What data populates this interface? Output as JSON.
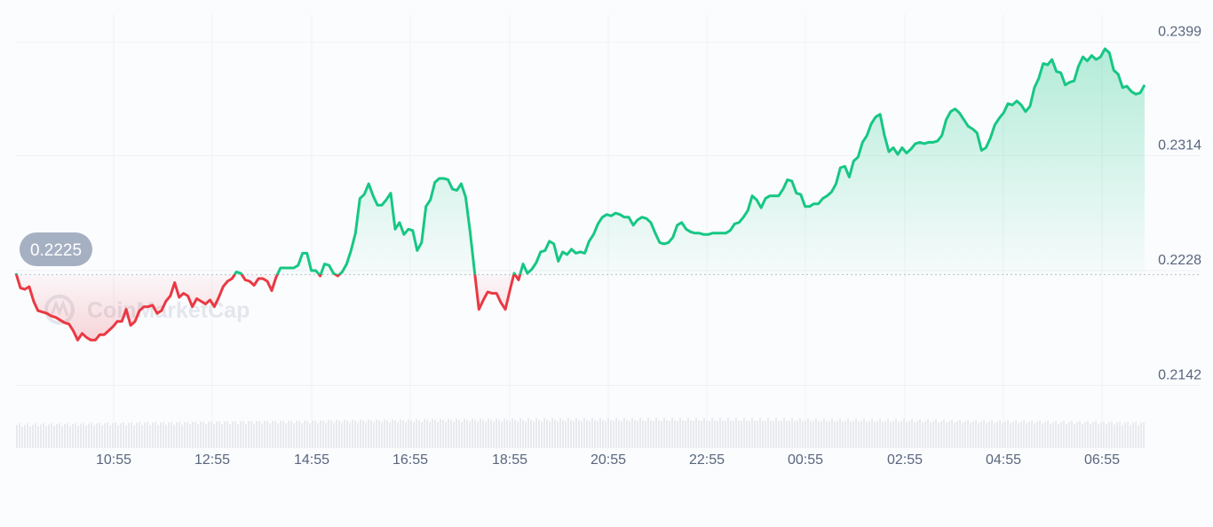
{
  "chart_data": {
    "type": "line",
    "x_labels": [
      "10:55",
      "12:55",
      "14:55",
      "16:55",
      "18:55",
      "20:55",
      "22:55",
      "00:55",
      "02:55",
      "04:55",
      "06:55"
    ],
    "y_ticks": [
      0.2399,
      0.2314,
      0.2228,
      0.2142
    ],
    "ylim": [
      0.2124,
      0.241
    ],
    "baseline": 0.2225,
    "grid": true,
    "series": [
      {
        "values": [
          0.2226,
          0.2215,
          0.2214,
          0.2216,
          0.2205,
          0.2198,
          0.2197,
          0.2196,
          0.2194,
          0.2193,
          0.2191,
          0.2189,
          0.2188,
          0.2183,
          0.2176,
          0.2181,
          0.2178,
          0.2176,
          0.2176,
          0.218,
          0.218,
          0.2183,
          0.2186,
          0.219,
          0.219,
          0.2199,
          0.2187,
          0.219,
          0.2198,
          0.2201,
          0.2201,
          0.2202,
          0.2196,
          0.2198,
          0.2205,
          0.2209,
          0.2219,
          0.2208,
          0.2211,
          0.2209,
          0.2201,
          0.2207,
          0.2205,
          0.2203,
          0.2206,
          0.2201,
          0.2208,
          0.2216,
          0.222,
          0.2222,
          0.2227,
          0.2226,
          0.2221,
          0.222,
          0.2217,
          0.2222,
          0.2222,
          0.222,
          0.2213,
          0.2223,
          0.223,
          0.223,
          0.223,
          0.223,
          0.2232,
          0.2241,
          0.2241,
          0.2228,
          0.2228,
          0.2224,
          0.2233,
          0.2232,
          0.2226,
          0.2224,
          0.2227,
          0.2233,
          0.2243,
          0.2256,
          0.2282,
          0.2285,
          0.2293,
          0.2284,
          0.2277,
          0.2277,
          0.2281,
          0.2286,
          0.2259,
          0.2264,
          0.2255,
          0.2259,
          0.2258,
          0.2243,
          0.2249,
          0.2276,
          0.2281,
          0.2294,
          0.2297,
          0.2297,
          0.2296,
          0.2289,
          0.2288,
          0.2293,
          0.2283,
          0.2257,
          0.2228,
          0.2199,
          0.2206,
          0.2212,
          0.2211,
          0.2211,
          0.2204,
          0.2199,
          0.2213,
          0.2226,
          0.2221,
          0.2233,
          0.2226,
          0.2229,
          0.2234,
          0.2242,
          0.2243,
          0.225,
          0.2248,
          0.2235,
          0.2242,
          0.224,
          0.2244,
          0.2241,
          0.2242,
          0.2241,
          0.225,
          0.2255,
          0.2263,
          0.2268,
          0.227,
          0.2269,
          0.2271,
          0.227,
          0.2268,
          0.2268,
          0.2262,
          0.2266,
          0.2268,
          0.2267,
          0.2264,
          0.2256,
          0.2249,
          0.2248,
          0.2249,
          0.2253,
          0.2262,
          0.2264,
          0.2259,
          0.2257,
          0.2256,
          0.2256,
          0.2255,
          0.2255,
          0.2256,
          0.2256,
          0.2256,
          0.2256,
          0.2258,
          0.2263,
          0.2264,
          0.2268,
          0.2273,
          0.2284,
          0.2281,
          0.2275,
          0.2282,
          0.2284,
          0.2284,
          0.2284,
          0.2289,
          0.2296,
          0.2295,
          0.2286,
          0.2285,
          0.2276,
          0.2276,
          0.2278,
          0.2278,
          0.2282,
          0.2284,
          0.2287,
          0.2293,
          0.2305,
          0.2306,
          0.2298,
          0.231,
          0.2313,
          0.2324,
          0.2329,
          0.2338,
          0.2343,
          0.2345,
          0.2329,
          0.2317,
          0.232,
          0.2315,
          0.232,
          0.2316,
          0.2319,
          0.2323,
          0.2324,
          0.2323,
          0.2324,
          0.2324,
          0.2325,
          0.2329,
          0.2341,
          0.2347,
          0.2349,
          0.2346,
          0.2341,
          0.2336,
          0.2334,
          0.2331,
          0.2318,
          0.232,
          0.2327,
          0.2337,
          0.2342,
          0.2346,
          0.2353,
          0.2352,
          0.2355,
          0.2352,
          0.2347,
          0.2351,
          0.2365,
          0.2372,
          0.2383,
          0.2382,
          0.2386,
          0.2377,
          0.2376,
          0.2367,
          0.2369,
          0.237,
          0.2381,
          0.2388,
          0.2385,
          0.2389,
          0.2386,
          0.2388,
          0.2394,
          0.2391,
          0.2378,
          0.2375,
          0.2365,
          0.2366,
          0.2362,
          0.236,
          0.2361,
          0.2367
        ]
      }
    ],
    "current_price_label": "0.2225",
    "colors": {
      "up": "#16c784",
      "down": "#ea3943",
      "grid": "#eff2f5",
      "badge": "#a6b0c3"
    }
  },
  "watermark": "CoinMarketCap"
}
